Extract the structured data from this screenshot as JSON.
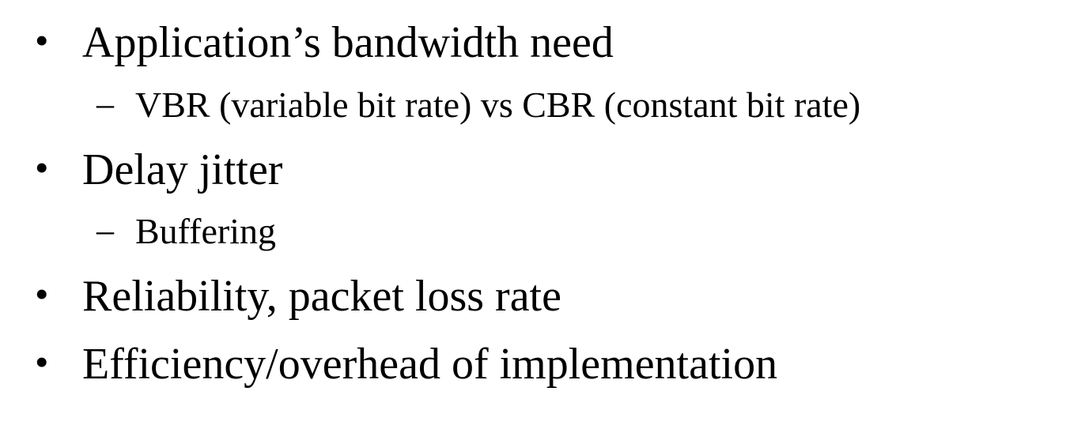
{
  "slide": {
    "items": [
      {
        "text": "Application’s bandwidth need",
        "marker": "•",
        "subitems": [
          {
            "text": "VBR (variable bit rate) vs CBR (constant bit rate)",
            "marker": "–"
          }
        ]
      },
      {
        "text": "Delay jitter",
        "marker": "•",
        "subitems": [
          {
            "text": "Buffering",
            "marker": "–"
          }
        ]
      },
      {
        "text": "Reliability, packet loss rate",
        "marker": "•",
        "subitems": []
      },
      {
        "text": "Efficiency/overhead of implementation",
        "marker": "•",
        "subitems": []
      }
    ]
  }
}
